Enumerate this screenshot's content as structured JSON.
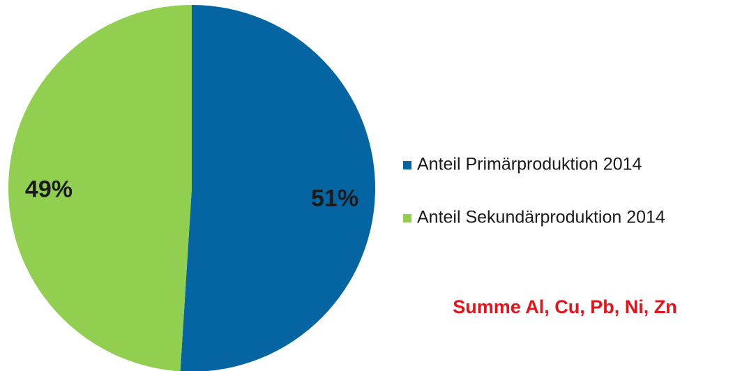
{
  "chart_data": {
    "type": "pie",
    "categories": [
      "Anteil Primärproduktion 2014",
      "Anteil Sekundärproduktion 2014"
    ],
    "values": [
      51,
      49
    ],
    "value_labels": [
      "51%",
      "49%"
    ],
    "colors": [
      "#0565a3",
      "#92cf50"
    ],
    "annotation": "Summe Al, Cu, Pb, Ni, Zn"
  }
}
